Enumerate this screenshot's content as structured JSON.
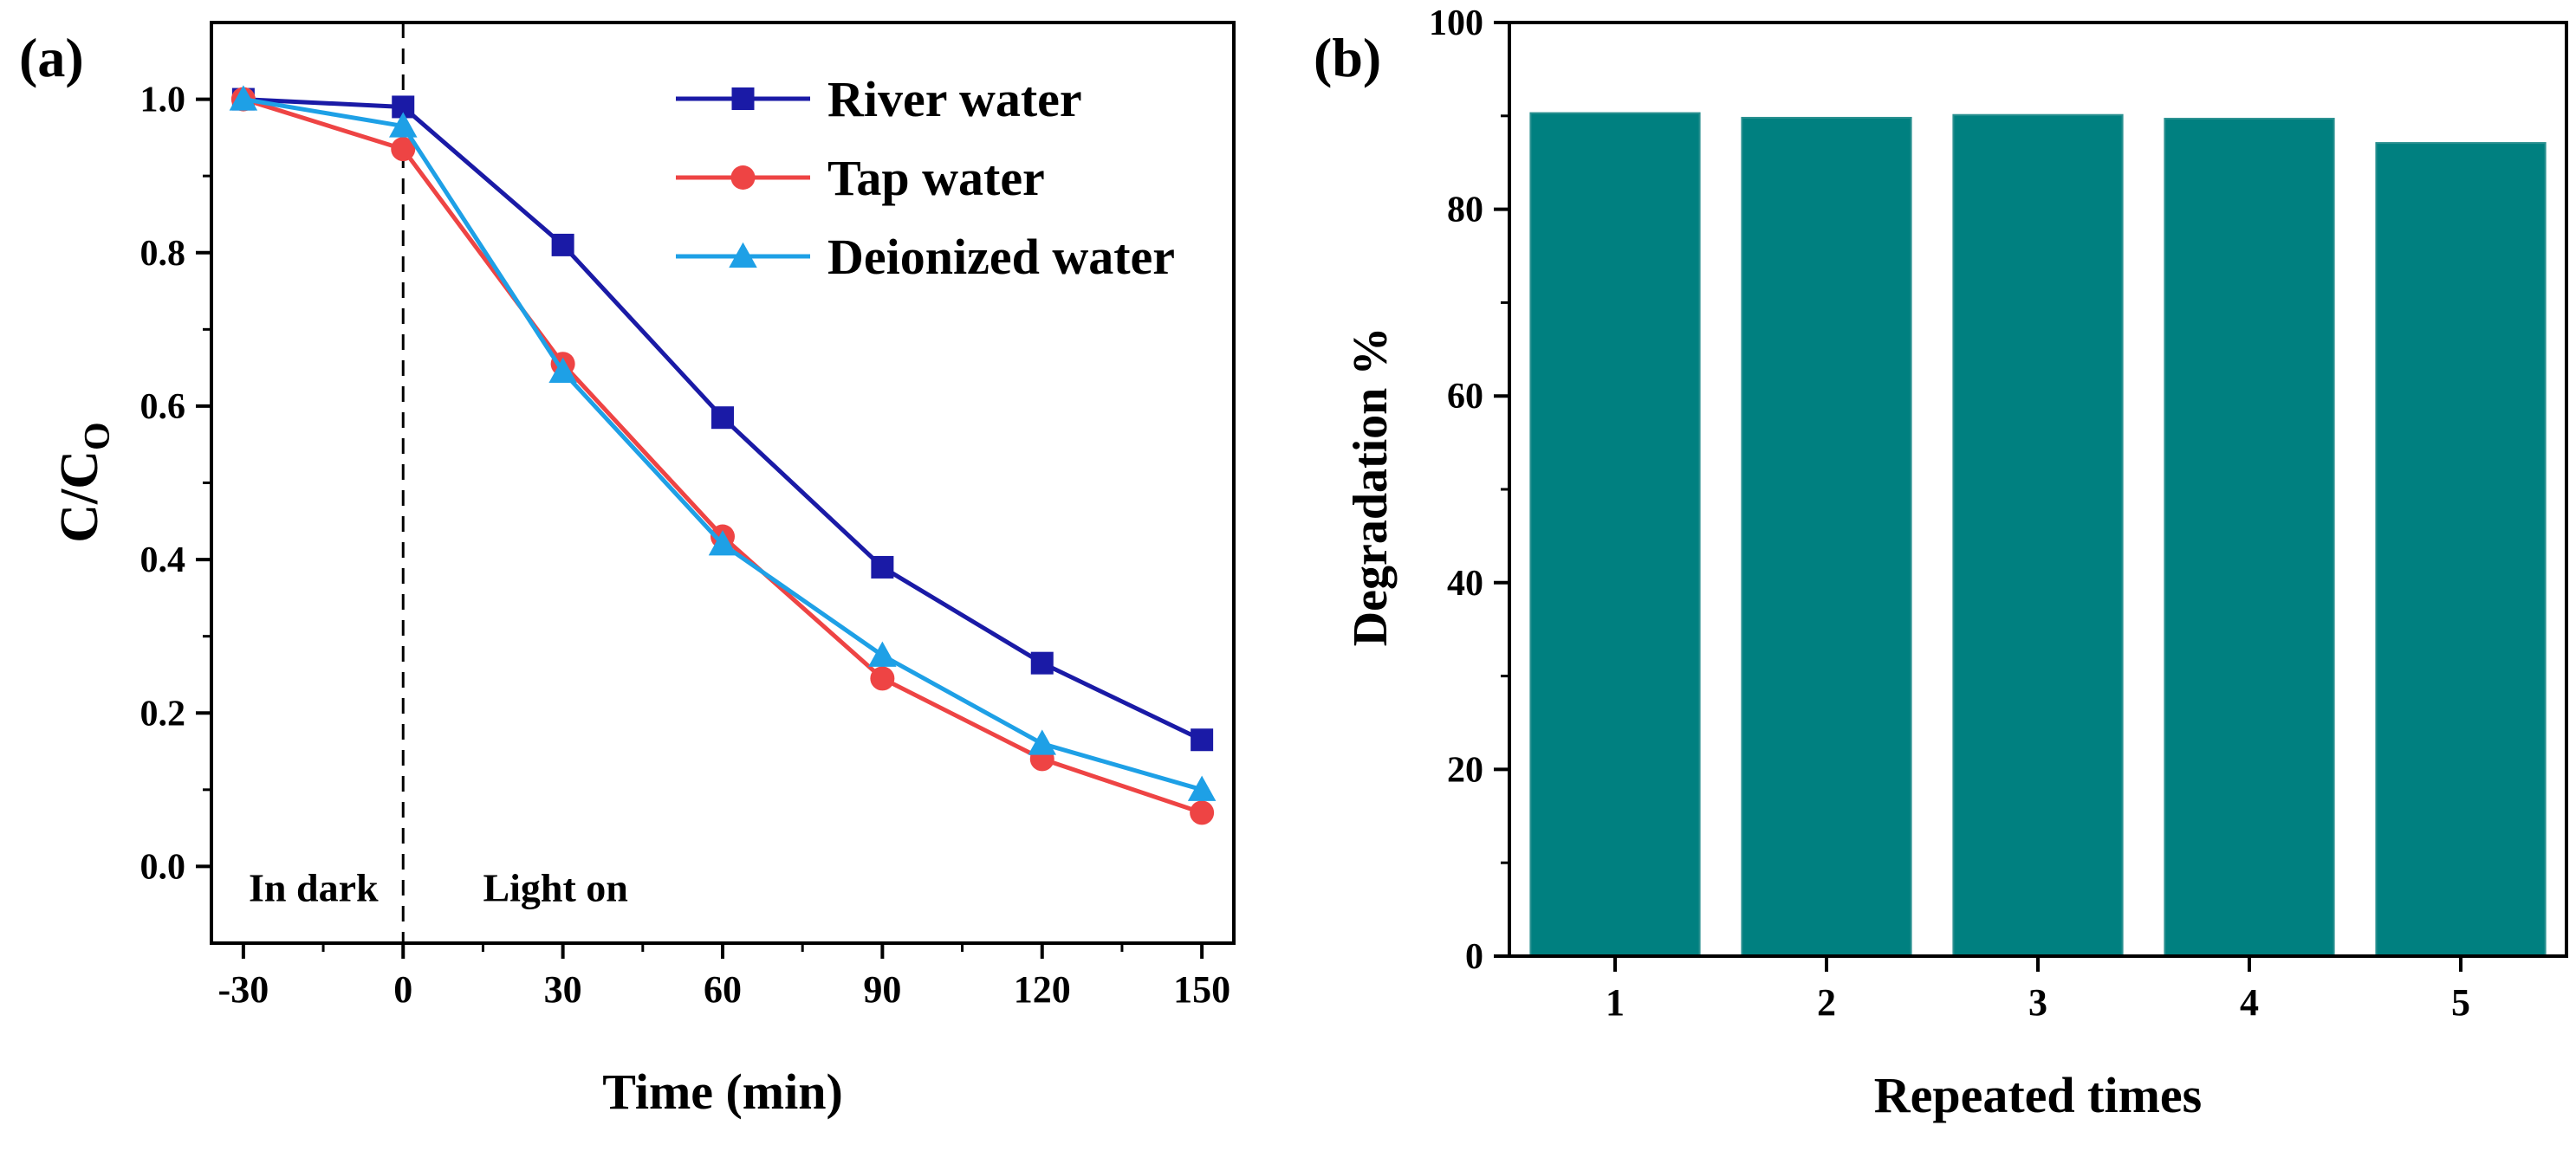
{
  "chart_data": [
    {
      "type": "line",
      "panel_label": "(a)",
      "xlabel": "Time (min)",
      "ylabel_main": "C/C",
      "ylabel_sub": "O",
      "x": [
        -30,
        0,
        30,
        60,
        90,
        120,
        150
      ],
      "xlim": [
        -36,
        156
      ],
      "ylim": [
        -0.1,
        1.1
      ],
      "xticks": [
        -30,
        0,
        30,
        60,
        90,
        120,
        150
      ],
      "xtick_labels": [
        "-30",
        "0",
        "30",
        "60",
        "90",
        "120",
        "150"
      ],
      "yticks": [
        0.0,
        0.2,
        0.4,
        0.6,
        0.8,
        1.0
      ],
      "ytick_labels": [
        "0.0",
        "0.2",
        "0.4",
        "0.6",
        "0.8",
        "1.0"
      ],
      "vline_x": 0,
      "annotations": [
        "In dark",
        "Light on"
      ],
      "legend_position": "top-right",
      "series": [
        {
          "name": "River water",
          "color": "#1a1aa6",
          "marker": "square",
          "values": [
            1.0,
            0.99,
            0.81,
            0.585,
            0.39,
            0.265,
            0.165
          ]
        },
        {
          "name": "Tap water",
          "color": "#ee4444",
          "marker": "circle",
          "values": [
            1.0,
            0.935,
            0.655,
            0.43,
            0.245,
            0.14,
            0.07
          ]
        },
        {
          "name": "Deionized water",
          "color": "#1ea0e6",
          "marker": "triangle",
          "values": [
            1.0,
            0.965,
            0.645,
            0.42,
            0.275,
            0.16,
            0.1
          ]
        }
      ]
    },
    {
      "type": "bar",
      "panel_label": "(b)",
      "xlabel": "Repeated times",
      "ylabel": "Degradation %",
      "categories": [
        "1",
        "2",
        "3",
        "4",
        "5"
      ],
      "values": [
        90.3,
        89.8,
        90.1,
        89.7,
        87.1
      ],
      "ylim": [
        0,
        100
      ],
      "yticks": [
        0,
        20,
        40,
        60,
        80,
        100
      ],
      "ytick_labels": [
        "0",
        "20",
        "40",
        "60",
        "80",
        "100"
      ],
      "bar_color": "#008080"
    }
  ]
}
